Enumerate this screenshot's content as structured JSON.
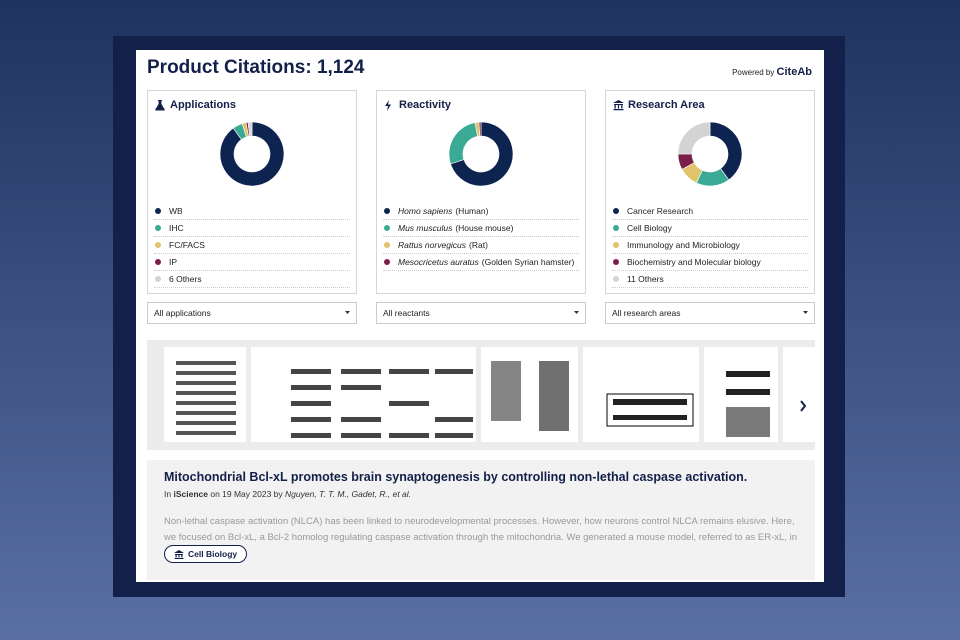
{
  "header": {
    "title": "Product Citations: 1,124",
    "powered_by": "Powered by",
    "brand": "CiteAb"
  },
  "panels": [
    {
      "type": "pie",
      "title": "Applications",
      "legend": [
        {
          "name": "WB"
        },
        {
          "name": "IHC"
        },
        {
          "name": "FC/FACS"
        },
        {
          "name": "IP"
        },
        {
          "name": "6 Others"
        }
      ],
      "values": [
        90,
        5,
        2,
        1,
        2
      ],
      "colors": [
        "#0d2350",
        "#3aaa95",
        "#e0c36a",
        "#7a1f4a",
        "#d3d3d3"
      ],
      "dropdown": "All applications"
    },
    {
      "type": "pie",
      "title": "Reactivity",
      "legend": [
        {
          "name": "Homo sapiens",
          "common": "(Human)"
        },
        {
          "name": "Mus musculus",
          "common": "(House mouse)"
        },
        {
          "name": "Rattus norvegicus",
          "common": "(Rat)"
        },
        {
          "name": "Mesocricetus auratus",
          "common": "(Golden Syrian hamster)"
        }
      ],
      "values": [
        70,
        27,
        2,
        1
      ],
      "colors": [
        "#0d2350",
        "#3aaa95",
        "#e0c36a",
        "#7a1f4a"
      ],
      "dropdown": "All reactants"
    },
    {
      "type": "pie",
      "title": "Research Area",
      "legend": [
        {
          "name": "Cancer Research"
        },
        {
          "name": "Cell Biology"
        },
        {
          "name": "Immunology and Microbiology"
        },
        {
          "name": "Biochemistry and Molecular biology"
        },
        {
          "name": "11 Others"
        }
      ],
      "values": [
        40,
        17,
        10,
        8,
        25
      ],
      "colors": [
        "#0d2350",
        "#3aaa95",
        "#e0c36a",
        "#7a1f4a",
        "#d3d3d3"
      ],
      "dropdown": "All research areas"
    }
  ],
  "article": {
    "title": "Mitochondrial Bcl-xL promotes brain synaptogenesis by controlling non-lethal caspase activation.",
    "meta": {
      "in": "In",
      "journal": "iScience",
      "on": "on 19 May 2023 by",
      "authors": "Nguyen, T. T. M., Gadet, R., et al."
    },
    "abstract": "Non-lethal caspase activation (NLCA) has been linked to neurodevelopmental processes. However, how neurons control NLCA remains elusive. Here, we focused on Bcl-xL, a Bcl-2 homolog regulating caspase activation through the mitochondria. We generated a mouse model, referred to as ER-xL, in",
    "tag": "Cell Biology"
  }
}
